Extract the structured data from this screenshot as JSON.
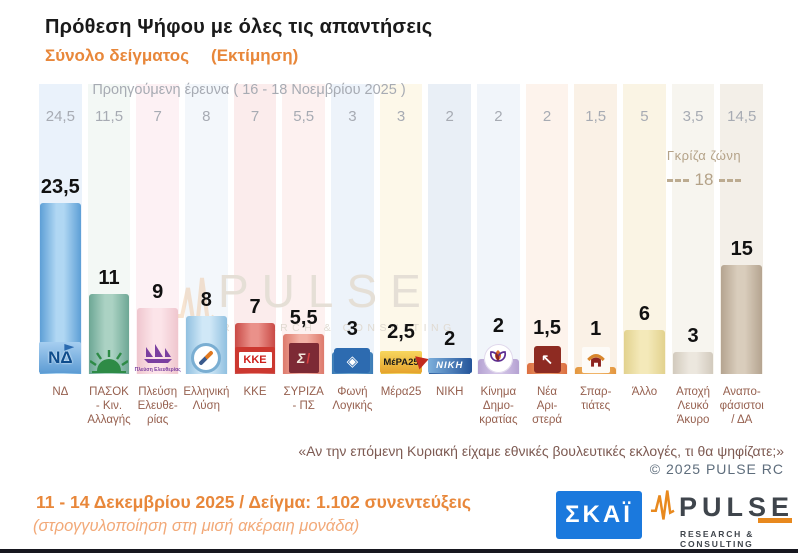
{
  "header": {
    "title": "Πρόθεση Ψήφου με όλες τις απαντήσεις",
    "subtitle_left": "Σύνολο δείγματος",
    "subtitle_right": "(Εκτίμηση)",
    "accent_color": "#e8873a"
  },
  "previous_survey": {
    "label": "Προηγούμενη έρευνα ( 16 - 18 Νοεμβρίου 2025 )"
  },
  "gray_zone": {
    "label": "Γκρίζα ζώνη",
    "value": "18"
  },
  "parties": [
    {
      "label": "ΝΔ",
      "value": "23,5",
      "prev": "24,5",
      "logo": "nd-logo",
      "logo_text": "ΝΔ",
      "bar_edge": "#5d9fd6",
      "bar_mid": "#b0d7f3",
      "stripe": "#eaf2fb"
    },
    {
      "label": "ΠΑΣΟΚ\n- Κιν.\nΑλλαγής",
      "value": "11",
      "prev": "11,5",
      "logo": "pasok-sun-logo",
      "logo_text": "",
      "bar_edge": "#6da795",
      "bar_mid": "#abd2c3",
      "stripe": "#f3f8f5"
    },
    {
      "label": "Πλεύση\nΕλευθε-\nρίας",
      "value": "9",
      "prev": "7",
      "logo": "plefsi-sailboat-logo",
      "logo_text": "Πλεύση Ελευθερίας",
      "bar_edge": "#efc6ce",
      "bar_mid": "#fce4e9",
      "stripe": "#fdf1f4"
    },
    {
      "label": "Ελληνική\nΛύση",
      "value": "8",
      "prev": "8",
      "logo": "elliniki-lysi-compass-logo",
      "logo_text": "",
      "bar_edge": "#90c0e0",
      "bar_mid": "#d0e8f7",
      "stripe": "#f3f7fb"
    },
    {
      "label": "ΚΚΕ",
      "value": "7",
      "prev": "7",
      "logo": "kke-logo",
      "logo_text": "ΚΚΕ",
      "bar_edge": "#c94a46",
      "bar_mid": "#ea918a",
      "stripe": "#fbecec"
    },
    {
      "label": "ΣΥΡΙΖΑ\n- ΠΣ",
      "value": "5,5",
      "prev": "5,5",
      "logo": "syriza-logo",
      "logo_text": "Σ",
      "bar_edge": "#dd7a6c",
      "bar_mid": "#f3b2a6",
      "stripe": "#fdf1f0"
    },
    {
      "label": "Φωνή\nΛογικής",
      "value": "3",
      "prev": "3",
      "logo": "foni-logikis-logo",
      "logo_text": "◈",
      "bar_edge": "#3c7cb6",
      "bar_mid": "#6aa2cc",
      "stripe": "#edf3fa"
    },
    {
      "label": "Μέρα25",
      "value": "2,5",
      "prev": "3",
      "logo": "mera25-logo",
      "logo_text": "ΜέΡΑ25",
      "bar_edge": "#e3b93e",
      "bar_mid": "#f2d66a",
      "stripe": "#fdf8e9"
    },
    {
      "label": "ΝΙΚΗ",
      "value": "2",
      "prev": "2",
      "logo": "niki-logo",
      "logo_text": "ΝΙΚΗ",
      "bar_edge": "#2f5f9e",
      "bar_mid": "#4f83c0",
      "stripe": "#e9eff6"
    },
    {
      "label": "Κίνημα\nΔημο-\nκρατίας",
      "value": "2",
      "prev": "2",
      "logo": "kinima-dimokratias-flower-logo",
      "logo_text": "",
      "bar_edge": "#b5a2d2",
      "bar_mid": "#d3c5e7",
      "stripe": "#f1f5fa"
    },
    {
      "label": "Νέα\nΑρι-\nστερά",
      "value": "1,5",
      "prev": "2",
      "logo": "nea-aristera-arrow-logo",
      "logo_text": "↖",
      "bar_edge": "#dc6f40",
      "bar_mid": "#eb9a6c",
      "stripe": "#fdf3ec"
    },
    {
      "label": "Σπαρ-\nτιάτες",
      "value": "1",
      "prev": "1,5",
      "logo": "spartiates-helmet-logo",
      "logo_text": "",
      "bar_edge": "#e3963e",
      "bar_mid": "#f0b468",
      "stripe": "#faf1e6"
    },
    {
      "label": "Άλλο",
      "value": "6",
      "prev": "5",
      "logo": "",
      "logo_text": "",
      "bar_edge": "#e2d28e",
      "bar_mid": "#f4e9b9",
      "stripe": "#faf4e4"
    },
    {
      "label": "Αποχή\nΛευκό\nΆκυρο",
      "value": "3",
      "prev": "3,5",
      "logo": "",
      "logo_text": "",
      "bar_edge": "#d2cabd",
      "bar_mid": "#ece7de",
      "stripe": "#f7f5ef"
    },
    {
      "label": "Αναπο-\nφάσιστοι\n/ ΔΑ",
      "value": "15",
      "prev": "14,5",
      "logo": "",
      "logo_text": "",
      "bar_edge": "#b5a490",
      "bar_mid": "#d9cdbc",
      "stripe": "#f3efe8"
    }
  ],
  "question": "«Αν την επόμενη Κυριακή είχαμε εθνικές βουλευτικές εκλογές, τι θα ψηφίζατε;»",
  "copyright": "©  2025  PULSE RC",
  "footer": {
    "line1": "11 - 14 Δεκεμβρίου 2025  /  Δείγμα:  1.102 συνεντεύξεις",
    "line2": "(στρογγυλοποίηση στη μισή ακέραιη μονάδα)"
  },
  "logos": {
    "skai": "ΣΚΑΪ",
    "pulse": "PULSE",
    "pulse_sub": "RESEARCH & CONSULTING"
  },
  "watermark": {
    "text": "PULSE",
    "sub": "RESEARCH & CONSULTING"
  },
  "chart_data": {
    "type": "bar",
    "title": "Πρόθεση Ψήφου με όλες τις απαντήσεις",
    "subtitle": "Σύνολο δείγματος (Εκτίμηση)",
    "categories": [
      "ΝΔ",
      "ΠΑΣΟΚ - Κιν. Αλλαγής",
      "Πλεύση Ελευθερίας",
      "Ελληνική Λύση",
      "ΚΚΕ",
      "ΣΥΡΙΖΑ - ΠΣ",
      "Φωνή Λογικής",
      "Μέρα25",
      "ΝΙΚΗ",
      "Κίνημα Δημοκρατίας",
      "Νέα Αριστερά",
      "Σπαρτιάτες",
      "Άλλο",
      "Αποχή Λευκό Άκυρο",
      "Αναποφάσιστοι / ΔΑ"
    ],
    "series": [
      {
        "name": "Εκτίμηση 11 - 14 Δεκεμβρίου 2025",
        "values": [
          23.5,
          11,
          9,
          8,
          7,
          5.5,
          3,
          2.5,
          2,
          2,
          1.5,
          1,
          6,
          3,
          15
        ]
      },
      {
        "name": "Προηγούμενη έρευνα 16 - 18 Νοεμβρίου 2025",
        "values": [
          24.5,
          11.5,
          7,
          8,
          7,
          5.5,
          3,
          3,
          2,
          2,
          2,
          1.5,
          5,
          3.5,
          14.5
        ]
      }
    ],
    "annotations": {
      "gray_zone_label": "Γκρίζα ζώνη",
      "gray_zone_value": 18
    },
    "xlabel": "",
    "ylabel": "",
    "ylim": [
      0,
      26
    ],
    "grid": false,
    "legend_position": "none"
  }
}
